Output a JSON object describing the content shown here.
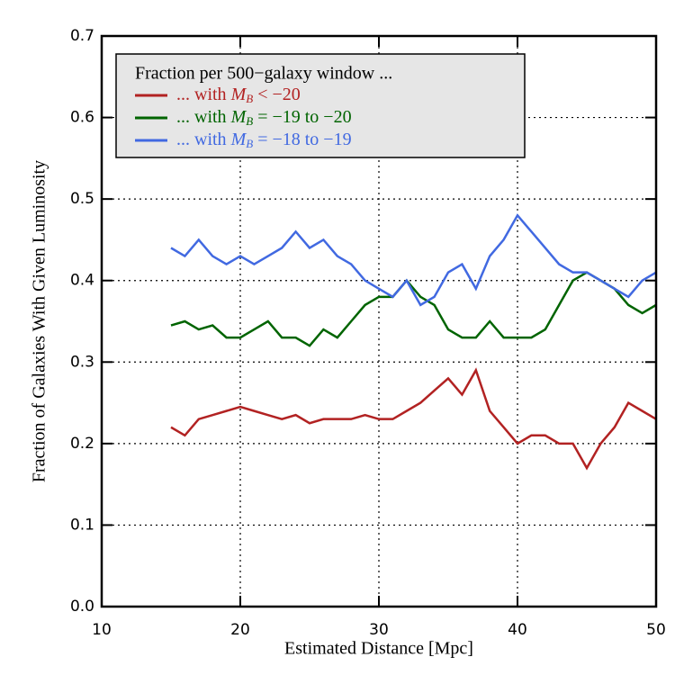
{
  "chart_data": {
    "type": "line",
    "xlabel": "Estimated Distance [Mpc]",
    "ylabel": "Fraction of Galaxies With Given Luminosity",
    "legend_title": "Fraction per 500−galaxy window ...",
    "legend_position": "upper left",
    "grid": true,
    "xlim": [
      10,
      50
    ],
    "xticks": [
      10,
      20,
      30,
      40,
      50
    ],
    "ylim": [
      0,
      0.7
    ],
    "yticks": [
      {
        "value": 0,
        "label": "0.0"
      },
      0.1,
      0.2,
      0.3,
      0.4,
      0.5,
      0.6,
      0.7
    ],
    "x": [
      15,
      16,
      17,
      18,
      19,
      20,
      21,
      22,
      23,
      24,
      25,
      26,
      27,
      28,
      29,
      30,
      31,
      32,
      33,
      34,
      35,
      36,
      37,
      38,
      39,
      40,
      41,
      42,
      43,
      44,
      45,
      46,
      47,
      48,
      49,
      50
    ],
    "series": [
      {
        "name": "... with M_B < −20",
        "color": "#b22222",
        "values": [
          0.22,
          0.21,
          0.23,
          0.235,
          0.24,
          0.245,
          0.24,
          0.235,
          0.23,
          0.235,
          0.225,
          0.23,
          0.23,
          0.23,
          0.235,
          0.23,
          0.23,
          0.24,
          0.25,
          0.265,
          0.28,
          0.26,
          0.29,
          0.24,
          0.22,
          0.2,
          0.21,
          0.21,
          0.2,
          0.2,
          0.17,
          0.2,
          0.22,
          0.25,
          0.24,
          0.23
        ]
      },
      {
        "name": "... with M_B = −19 to −20",
        "color": "#006400",
        "values": [
          0.345,
          0.35,
          0.34,
          0.345,
          0.33,
          0.33,
          0.34,
          0.35,
          0.33,
          0.33,
          0.32,
          0.34,
          0.33,
          0.35,
          0.37,
          0.38,
          0.38,
          0.4,
          0.38,
          0.37,
          0.34,
          0.33,
          0.33,
          0.35,
          0.33,
          0.33,
          0.33,
          0.34,
          0.37,
          0.4,
          0.41,
          0.4,
          0.39,
          0.37,
          0.36,
          0.37
        ]
      },
      {
        "name": "... with M_B = −18 to −19",
        "color": "#4169e1",
        "values": [
          0.44,
          0.43,
          0.45,
          0.43,
          0.42,
          0.43,
          0.42,
          0.43,
          0.44,
          0.46,
          0.44,
          0.45,
          0.43,
          0.42,
          0.4,
          0.39,
          0.38,
          0.4,
          0.37,
          0.38,
          0.41,
          0.42,
          0.39,
          0.43,
          0.45,
          0.48,
          0.46,
          0.44,
          0.42,
          0.41,
          0.41,
          0.4,
          0.39,
          0.38,
          0.4,
          0.41
        ]
      }
    ]
  }
}
